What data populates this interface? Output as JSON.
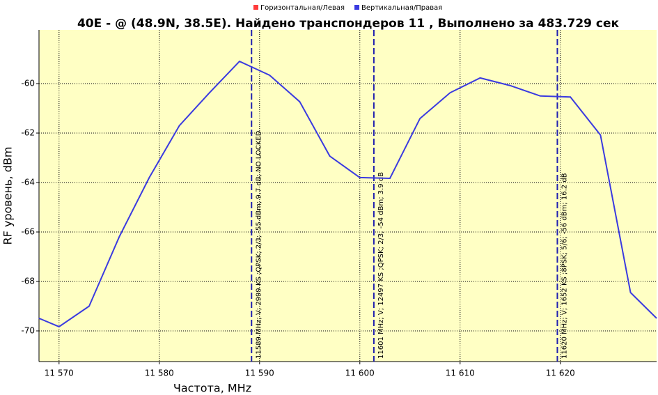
{
  "chart_data": {
    "type": "line",
    "title": "40E -  @  (48.9N, 38.5E). Найдено транспондеров 11 , Выполнено за 483.729 сек",
    "x_label": "Частота, MHz",
    "y_label": "RF уровень, dBm",
    "x": [
      11568,
      11570,
      11573,
      11576,
      11579,
      11582,
      11585,
      11588,
      11591,
      11594,
      11597,
      11600,
      11603,
      11606,
      11609,
      11612,
      11615,
      11618,
      11621,
      11624,
      11627,
      11629.6
    ],
    "series": [
      {
        "name": "Горизонтальная/Левая",
        "color": "#ff3b3b",
        "values": [
          null,
          null,
          null,
          null,
          null,
          null,
          null,
          null,
          null,
          null,
          null,
          null,
          null,
          null,
          null,
          null,
          null,
          null,
          null,
          null,
          null,
          null
        ]
      },
      {
        "name": "Вертикальная/Правая",
        "color": "#3a3ae0",
        "values": [
          -69.49,
          -69.83,
          -69.0,
          -66.2,
          -63.8,
          -61.7,
          -60.37,
          -59.1,
          -59.66,
          -60.73,
          -62.93,
          -63.8,
          -63.83,
          -61.41,
          -60.37,
          -59.77,
          -60.08,
          -60.5,
          -60.54,
          -62.08,
          -68.45,
          -69.49
        ]
      }
    ],
    "markers": [
      {
        "x": 11589.2,
        "label": "11589 MHz; V; 2999 KS ;QPSK; 2/3; -55 dBm; 9.7 dB; NO LOCKED"
      },
      {
        "x": 11601.4,
        "label": "11601 MHz; V; 12497 KS ;QPSK; 2/3; -54 dBm; 3.9 dB"
      },
      {
        "x": 11619.7,
        "label": "11620 MHz; V; 1652 KS ;8PSK; 5/6; -56 dBm; 16.2 dB"
      }
    ],
    "xlim": [
      11568,
      11629.6
    ],
    "ylim": [
      -71.24,
      -57.83
    ],
    "xticks": [
      {
        "value": 11570,
        "label": "11 570"
      },
      {
        "value": 11580,
        "label": "11 580"
      },
      {
        "value": 11590,
        "label": "11 590"
      },
      {
        "value": 11600,
        "label": "11 600"
      },
      {
        "value": 11610,
        "label": "11 610"
      },
      {
        "value": 11620,
        "label": "11 620"
      }
    ],
    "yticks": [
      -70,
      -68,
      -66,
      -64,
      -62,
      -60
    ],
    "grid": true,
    "background": "#ffffc4",
    "marker_color": "#2020b0"
  }
}
